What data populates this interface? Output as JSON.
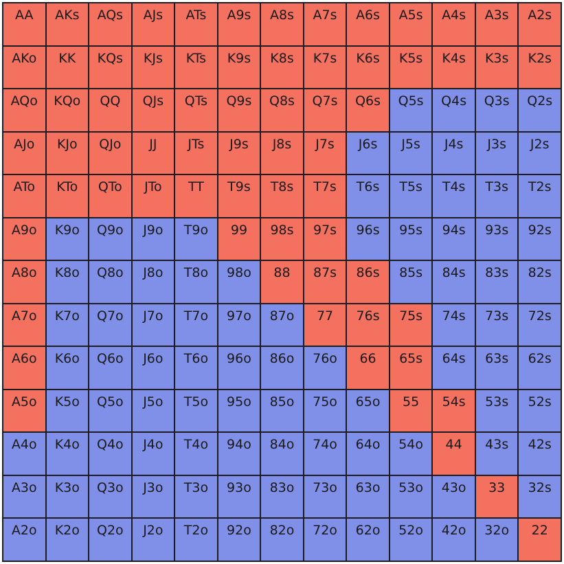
{
  "colors": {
    "raise": "#f4705f",
    "fold": "#8090e8",
    "border": "#1c1c22"
  },
  "ranks": [
    "A",
    "K",
    "Q",
    "J",
    "T",
    "9",
    "8",
    "7",
    "6",
    "5",
    "4",
    "3",
    "2"
  ],
  "rows": [
    [
      "AA",
      "AKs",
      "AQs",
      "AJs",
      "ATs",
      "A9s",
      "A8s",
      "A7s",
      "A6s",
      "A5s",
      "A4s",
      "A3s",
      "A2s"
    ],
    [
      "AKo",
      "KK",
      "KQs",
      "KJs",
      "KTs",
      "K9s",
      "K8s",
      "K7s",
      "K6s",
      "K5s",
      "K4s",
      "K3s",
      "K2s"
    ],
    [
      "AQo",
      "KQo",
      "QQ",
      "QJs",
      "QTs",
      "Q9s",
      "Q8s",
      "Q7s",
      "Q6s",
      "Q5s",
      "Q4s",
      "Q3s",
      "Q2s"
    ],
    [
      "AJo",
      "KJo",
      "QJo",
      "JJ",
      "JTs",
      "J9s",
      "J8s",
      "J7s",
      "J6s",
      "J5s",
      "J4s",
      "J3s",
      "J2s"
    ],
    [
      "ATo",
      "KTo",
      "QTo",
      "JTo",
      "TT",
      "T9s",
      "T8s",
      "T7s",
      "T6s",
      "T5s",
      "T4s",
      "T3s",
      "T2s"
    ],
    [
      "A9o",
      "K9o",
      "Q9o",
      "J9o",
      "T9o",
      "99",
      "98s",
      "97s",
      "96s",
      "95s",
      "94s",
      "93s",
      "92s"
    ],
    [
      "A8o",
      "K8o",
      "Q8o",
      "J8o",
      "T8o",
      "98o",
      "88",
      "87s",
      "86s",
      "85s",
      "84s",
      "83s",
      "82s"
    ],
    [
      "A7o",
      "K7o",
      "Q7o",
      "J7o",
      "T7o",
      "97o",
      "87o",
      "77",
      "76s",
      "75s",
      "74s",
      "73s",
      "72s"
    ],
    [
      "A6o",
      "K6o",
      "Q6o",
      "J6o",
      "T6o",
      "96o",
      "86o",
      "76o",
      "66",
      "65s",
      "64s",
      "63s",
      "62s"
    ],
    [
      "A5o",
      "K5o",
      "Q5o",
      "J5o",
      "T5o",
      "95o",
      "85o",
      "75o",
      "65o",
      "55",
      "54s",
      "53s",
      "52s"
    ],
    [
      "A4o",
      "K4o",
      "Q4o",
      "J4o",
      "T4o",
      "94o",
      "84o",
      "74o",
      "64o",
      "54o",
      "44",
      "43s",
      "42s"
    ],
    [
      "A3o",
      "K3o",
      "Q3o",
      "J3o",
      "T3o",
      "93o",
      "83o",
      "73o",
      "63o",
      "53o",
      "43o",
      "33",
      "32s"
    ],
    [
      "A2o",
      "K2o",
      "Q2o",
      "J2o",
      "T2o",
      "92o",
      "82o",
      "72o",
      "62o",
      "52o",
      "42o",
      "32o",
      "22"
    ]
  ],
  "highlight": [
    [
      1,
      1,
      1,
      1,
      1,
      1,
      1,
      1,
      1,
      1,
      1,
      1,
      1
    ],
    [
      1,
      1,
      1,
      1,
      1,
      1,
      1,
      1,
      1,
      1,
      1,
      1,
      1
    ],
    [
      1,
      1,
      1,
      1,
      1,
      1,
      1,
      1,
      1,
      0,
      0,
      0,
      0
    ],
    [
      1,
      1,
      1,
      1,
      1,
      1,
      1,
      1,
      0,
      0,
      0,
      0,
      0
    ],
    [
      1,
      1,
      1,
      1,
      1,
      1,
      1,
      1,
      0,
      0,
      0,
      0,
      0
    ],
    [
      1,
      0,
      0,
      0,
      0,
      1,
      1,
      1,
      0,
      0,
      0,
      0,
      0
    ],
    [
      1,
      0,
      0,
      0,
      0,
      0,
      1,
      1,
      1,
      0,
      0,
      0,
      0
    ],
    [
      1,
      0,
      0,
      0,
      0,
      0,
      0,
      1,
      1,
      1,
      0,
      0,
      0
    ],
    [
      1,
      0,
      0,
      0,
      0,
      0,
      0,
      0,
      1,
      1,
      0,
      0,
      0
    ],
    [
      1,
      0,
      0,
      0,
      0,
      0,
      0,
      0,
      0,
      1,
      1,
      0,
      0
    ],
    [
      0,
      0,
      0,
      0,
      0,
      0,
      0,
      0,
      0,
      0,
      1,
      0,
      0
    ],
    [
      0,
      0,
      0,
      0,
      0,
      0,
      0,
      0,
      0,
      0,
      0,
      1,
      0
    ],
    [
      0,
      0,
      0,
      0,
      0,
      0,
      0,
      0,
      0,
      0,
      0,
      0,
      1
    ]
  ]
}
